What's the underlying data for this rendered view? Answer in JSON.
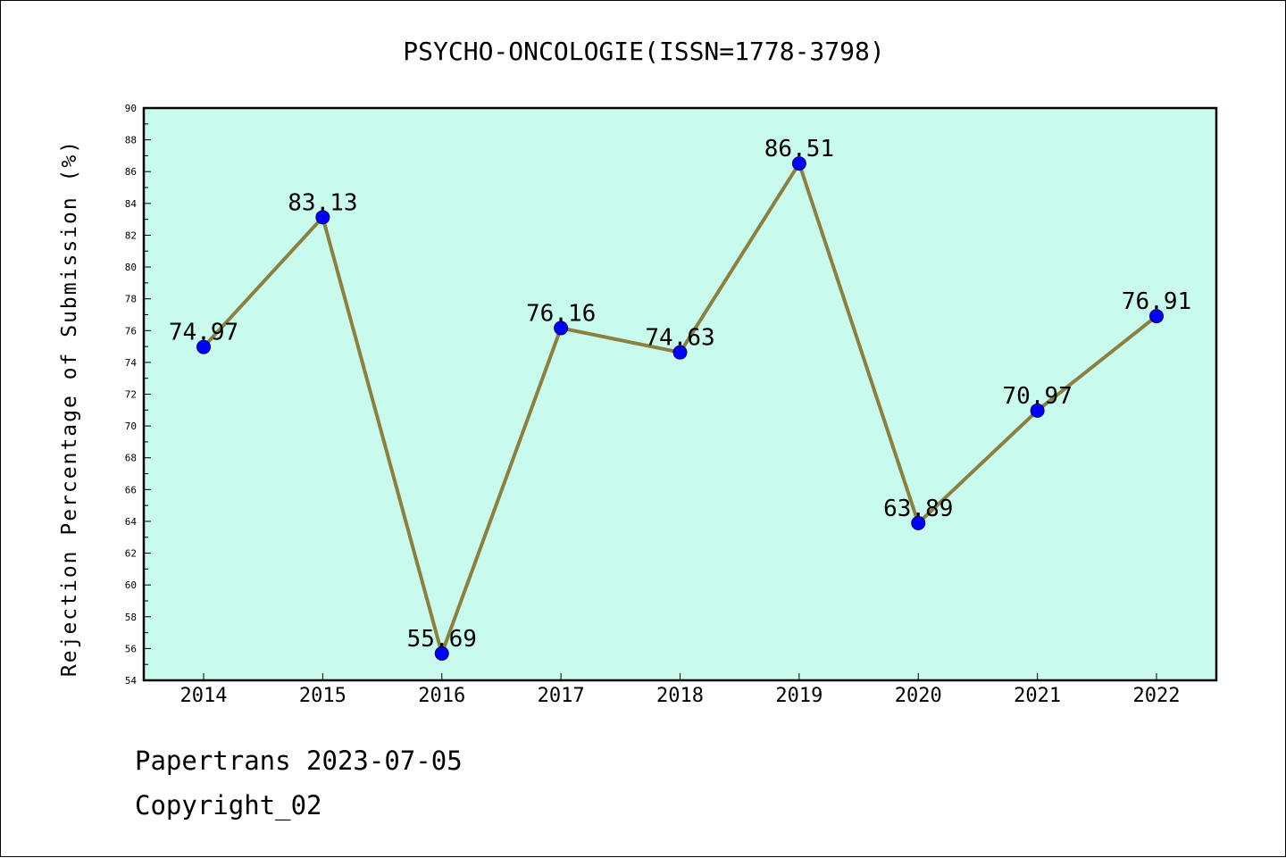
{
  "chart_data": {
    "type": "line",
    "title": "PSYCHO-ONCOLOGIE(ISSN=1778-3798)",
    "xlabel": "",
    "ylabel": "Rejection Percentage of Submission (%)",
    "categories": [
      "2014",
      "2015",
      "2016",
      "2017",
      "2018",
      "2019",
      "2020",
      "2021",
      "2022"
    ],
    "series": [
      {
        "values": [
          74.97,
          83.13,
          55.69,
          76.16,
          74.63,
          86.51,
          63.89,
          70.97,
          76.91
        ]
      }
    ],
    "data_labels": [
      "74.97",
      "83.13",
      "55.69",
      "76.16",
      "74.63",
      "86.51",
      "63.89",
      "70.97",
      "76.91"
    ],
    "ylim": [
      54,
      90
    ],
    "yticks": [
      "54",
      "56",
      "58",
      "60",
      "62",
      "64",
      "66",
      "68",
      "70",
      "72",
      "74",
      "76",
      "78",
      "80",
      "82",
      "84",
      "86",
      "88",
      "90"
    ],
    "grid": false,
    "legend": "none",
    "colors": {
      "plot_background": "#c8fbed",
      "line": "#8c8040",
      "marker": "#0000ff"
    }
  },
  "footer": {
    "line1": "Papertrans 2023-07-05",
    "line2": "Copyright_02"
  }
}
